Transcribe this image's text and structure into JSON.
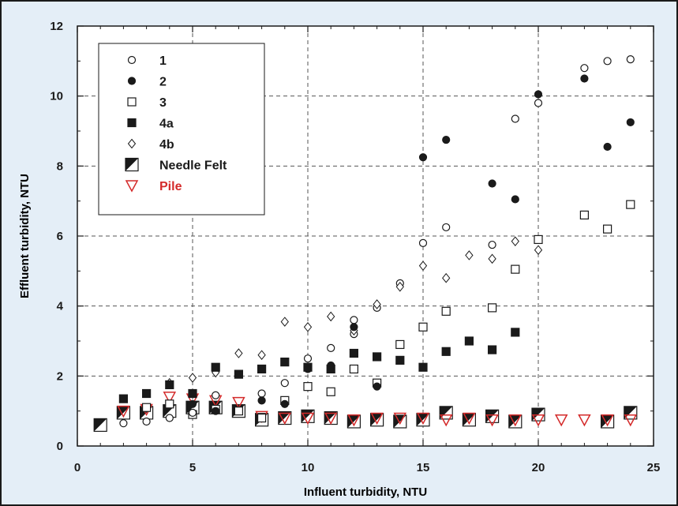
{
  "colors": {
    "background": "#e4eef7",
    "frame": "#1a1a1a",
    "plot_bg": "#ffffff",
    "grid": "#555555",
    "marker": "#1a1a1a",
    "pile": "#d42a2a"
  },
  "chart_data": {
    "type": "scatter",
    "title": "",
    "xlabel": "Influent turbidity, NTU",
    "ylabel": "Effluent turbidity, NTU",
    "xlim": [
      0,
      25
    ],
    "ylim": [
      0,
      12
    ],
    "xticks": [
      "0",
      "5",
      "10",
      "15",
      "20",
      "25"
    ],
    "yticks": [
      "0",
      "2",
      "4",
      "6",
      "8",
      "10",
      "12"
    ],
    "grid": "dashed at major ticks",
    "legend_position": "top-left",
    "series": [
      {
        "name": "1",
        "marker": "circle-open",
        "color": "#1a1a1a",
        "points": [
          [
            2,
            0.65
          ],
          [
            3,
            0.7
          ],
          [
            4,
            0.8
          ],
          [
            5,
            0.95
          ],
          [
            6,
            1.45
          ],
          [
            8,
            1.5
          ],
          [
            9,
            1.8
          ],
          [
            10,
            2.5
          ],
          [
            11,
            2.8
          ],
          [
            12,
            3.2
          ],
          [
            12,
            3.6
          ],
          [
            13,
            3.95
          ],
          [
            14,
            4.65
          ],
          [
            15,
            5.8
          ],
          [
            16,
            6.25
          ],
          [
            18,
            5.75
          ],
          [
            19,
            9.35
          ],
          [
            20,
            9.8
          ],
          [
            22,
            10.8
          ],
          [
            23,
            11.0
          ],
          [
            24,
            11.05
          ]
        ]
      },
      {
        "name": "2",
        "marker": "circle-filled",
        "color": "#1a1a1a",
        "points": [
          [
            5,
            1.2
          ],
          [
            6,
            1.0
          ],
          [
            8,
            1.3
          ],
          [
            9,
            1.2
          ],
          [
            10,
            2.2
          ],
          [
            11,
            2.3
          ],
          [
            12,
            3.4
          ],
          [
            13,
            1.7
          ],
          [
            15,
            8.25
          ],
          [
            16,
            8.75
          ],
          [
            18,
            7.5
          ],
          [
            19,
            7.05
          ],
          [
            20,
            10.05
          ],
          [
            22,
            10.5
          ],
          [
            23,
            8.55
          ],
          [
            24,
            9.25
          ]
        ]
      },
      {
        "name": "3",
        "marker": "square-open",
        "color": "#1a1a1a",
        "points": [
          [
            3,
            1.1
          ],
          [
            4,
            1.2
          ],
          [
            5,
            0.9
          ],
          [
            6,
            1.05
          ],
          [
            7,
            1.0
          ],
          [
            8,
            0.8
          ],
          [
            9,
            1.3
          ],
          [
            10,
            1.7
          ],
          [
            11,
            1.55
          ],
          [
            12,
            2.2
          ],
          [
            13,
            1.8
          ],
          [
            14,
            2.9
          ],
          [
            15,
            3.4
          ],
          [
            16,
            3.85
          ],
          [
            18,
            3.95
          ],
          [
            19,
            5.05
          ],
          [
            20,
            5.9
          ],
          [
            22,
            6.6
          ],
          [
            23,
            6.2
          ],
          [
            24,
            6.9
          ]
        ]
      },
      {
        "name": "4a",
        "marker": "square-filled",
        "color": "#1a1a1a",
        "points": [
          [
            2,
            1.35
          ],
          [
            3,
            1.5
          ],
          [
            4,
            1.75
          ],
          [
            5,
            1.5
          ],
          [
            6,
            2.25
          ],
          [
            7,
            2.05
          ],
          [
            8,
            2.2
          ],
          [
            9,
            2.4
          ],
          [
            10,
            2.25
          ],
          [
            11,
            2.2
          ],
          [
            12,
            2.65
          ],
          [
            13,
            2.55
          ],
          [
            14,
            2.45
          ],
          [
            15,
            2.25
          ],
          [
            16,
            2.7
          ],
          [
            17,
            3.0
          ],
          [
            18,
            2.75
          ],
          [
            19,
            3.25
          ]
        ]
      },
      {
        "name": "4b",
        "marker": "diamond-open",
        "color": "#1a1a1a",
        "points": [
          [
            4,
            1.8
          ],
          [
            5,
            1.95
          ],
          [
            6,
            2.1
          ],
          [
            7,
            2.65
          ],
          [
            8,
            2.6
          ],
          [
            9,
            3.55
          ],
          [
            10,
            3.4
          ],
          [
            11,
            3.7
          ],
          [
            12,
            3.3
          ],
          [
            13,
            4.05
          ],
          [
            14,
            4.55
          ],
          [
            15,
            5.15
          ],
          [
            16,
            4.8
          ],
          [
            17,
            5.45
          ],
          [
            18,
            5.35
          ],
          [
            19,
            5.85
          ],
          [
            20,
            5.6
          ]
        ]
      },
      {
        "name": "Needle Felt",
        "marker": "square-half",
        "color": "#1a1a1a",
        "points": [
          [
            1,
            0.6
          ],
          [
            2,
            0.95
          ],
          [
            3,
            0.95
          ],
          [
            4,
            1.0
          ],
          [
            5,
            1.1
          ],
          [
            6,
            1.1
          ],
          [
            7,
            1.0
          ],
          [
            8,
            0.75
          ],
          [
            9,
            0.8
          ],
          [
            10,
            0.85
          ],
          [
            11,
            0.8
          ],
          [
            12,
            0.7
          ],
          [
            13,
            0.75
          ],
          [
            14,
            0.7
          ],
          [
            15,
            0.75
          ],
          [
            16,
            0.95
          ],
          [
            17,
            0.75
          ],
          [
            18,
            0.85
          ],
          [
            19,
            0.7
          ],
          [
            20,
            0.9
          ],
          [
            23,
            0.7
          ],
          [
            24,
            0.95
          ]
        ]
      },
      {
        "name": "Pile",
        "marker": "triangle-down-open",
        "color": "#d42a2a",
        "points": [
          [
            2,
            1.0
          ],
          [
            3,
            1.05
          ],
          [
            4,
            1.4
          ],
          [
            5,
            1.35
          ],
          [
            6,
            1.3
          ],
          [
            7,
            1.25
          ],
          [
            8,
            0.85
          ],
          [
            9,
            0.8
          ],
          [
            10,
            0.8
          ],
          [
            11,
            0.8
          ],
          [
            12,
            0.75
          ],
          [
            13,
            0.8
          ],
          [
            14,
            0.8
          ],
          [
            15,
            0.8
          ],
          [
            16,
            0.75
          ],
          [
            17,
            0.8
          ],
          [
            18,
            0.75
          ],
          [
            19,
            0.75
          ],
          [
            20,
            0.75
          ],
          [
            21,
            0.75
          ],
          [
            22,
            0.75
          ],
          [
            23,
            0.75
          ],
          [
            24,
            0.75
          ]
        ]
      }
    ]
  }
}
